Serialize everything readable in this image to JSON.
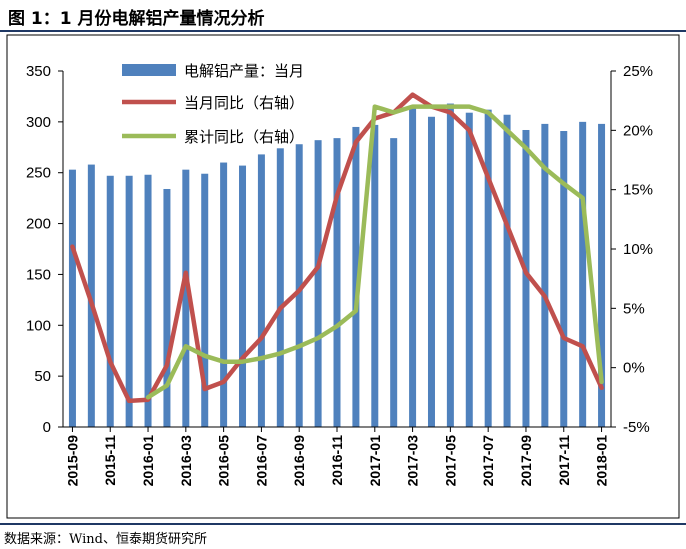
{
  "figure": {
    "title": "图 1：1 月份电解铝产量情况分析",
    "source": "数据来源：Wind、恒泰期货研究所"
  },
  "chart_data": {
    "type": "bar+line",
    "categories": [
      "2015-09",
      "2015-10",
      "2015-11",
      "2015-12",
      "2016-01",
      "2016-02",
      "2016-03",
      "2016-04",
      "2016-05",
      "2016-06",
      "2016-07",
      "2016-08",
      "2016-09",
      "2016-10",
      "2016-11",
      "2016-12",
      "2017-01",
      "2017-02",
      "2017-03",
      "2017-04",
      "2017-05",
      "2017-06",
      "2017-07",
      "2017-08",
      "2017-09",
      "2017-10",
      "2017-11",
      "2017-12",
      "2018-01"
    ],
    "x_tick_labels": [
      "2015-09",
      "2015-11",
      "2016-01",
      "2016-03",
      "2016-05",
      "2016-07",
      "2016-09",
      "2016-11",
      "2017-01",
      "2017-03",
      "2017-05",
      "2017-07",
      "2017-09",
      "2017-11",
      "2018-01"
    ],
    "series": [
      {
        "name": "电解铝产量：当月",
        "kind": "bar",
        "axis": "left",
        "color": "#4f81bd",
        "values": [
          253,
          258,
          247,
          247,
          248,
          234,
          253,
          249,
          260,
          257,
          268,
          274,
          278,
          282,
          284,
          295,
          297,
          284,
          315,
          305,
          318,
          309,
          312,
          307,
          292,
          298,
          291,
          300,
          298
        ]
      },
      {
        "name": "当月同比（右轴）",
        "kind": "line",
        "axis": "right",
        "color": "#c0504d",
        "values": [
          10.2,
          5.5,
          0.5,
          -2.8,
          -2.7,
          0.2,
          8.0,
          -1.8,
          -1.2,
          0.8,
          2.5,
          5.0,
          6.5,
          8.5,
          14.5,
          19.0,
          21.0,
          21.5,
          23.0,
          22.0,
          21.5,
          20.0,
          16.0,
          12.0,
          8.0,
          6.0,
          2.5,
          1.8,
          -1.7
        ]
      },
      {
        "name": "累计同比（右轴）",
        "kind": "line",
        "axis": "right",
        "color": "#9bbb59",
        "values": [
          null,
          null,
          null,
          null,
          -2.5,
          -1.5,
          1.8,
          1.0,
          0.5,
          0.5,
          0.8,
          1.2,
          1.8,
          2.5,
          3.5,
          4.8,
          22.0,
          21.5,
          22.0,
          22.0,
          22.0,
          22.0,
          21.5,
          20.0,
          18.5,
          16.8,
          15.5,
          14.3,
          -1.2
        ]
      }
    ],
    "y_left": {
      "ylim": [
        0,
        350
      ],
      "ticks": [
        "0",
        "50",
        "100",
        "150",
        "200",
        "250",
        "300",
        "350"
      ]
    },
    "y_right": {
      "ylim": [
        -5,
        25
      ],
      "ticks": [
        "-5%",
        "0%",
        "5%",
        "10%",
        "15%",
        "20%",
        "25%"
      ]
    },
    "legend": "top-left inside plot",
    "grid": false
  }
}
